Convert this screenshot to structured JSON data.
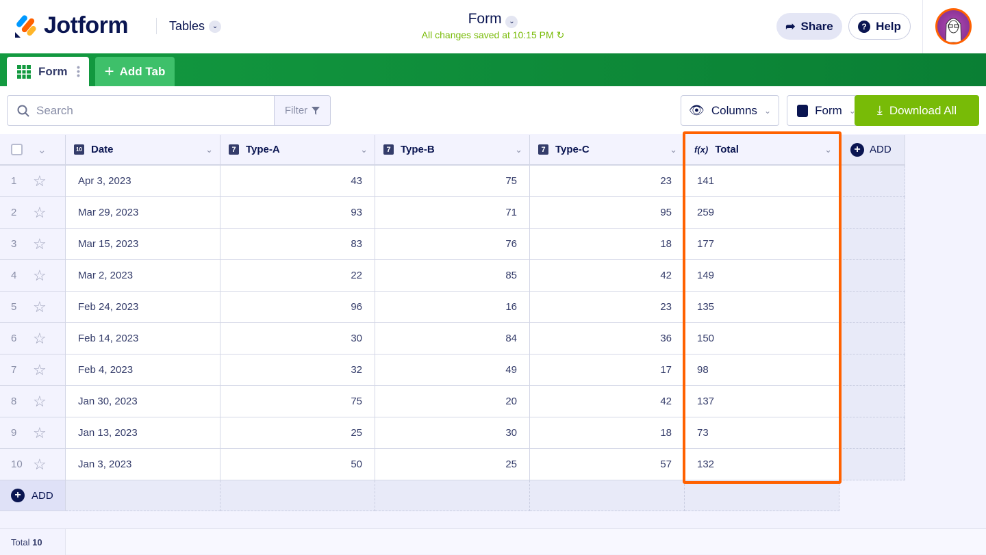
{
  "header": {
    "logo": "Jotform",
    "product": "Tables",
    "title": "Form",
    "saved_status": "All changes saved at 10:15 PM",
    "share": "Share",
    "help": "Help"
  },
  "tabs": {
    "active": "Form",
    "add": "Add Tab"
  },
  "toolbar": {
    "search_placeholder": "Search",
    "filter": "Filter",
    "columns": "Columns",
    "form": "Form",
    "download": "Download All"
  },
  "colors": {
    "brand_green": "#0f8f3a",
    "download": "#78bb07",
    "highlight": "#ff6100",
    "navy": "#0a1551"
  },
  "table": {
    "columns": [
      "Date",
      "Type-A",
      "Type-B",
      "Type-C",
      "Total"
    ],
    "add_column": "ADD",
    "rows": [
      {
        "n": "1",
        "date": "Apr 3, 2023",
        "a": "43",
        "b": "75",
        "c": "23",
        "total": "141"
      },
      {
        "n": "2",
        "date": "Mar 29, 2023",
        "a": "93",
        "b": "71",
        "c": "95",
        "total": "259"
      },
      {
        "n": "3",
        "date": "Mar 15, 2023",
        "a": "83",
        "b": "76",
        "c": "18",
        "total": "177"
      },
      {
        "n": "4",
        "date": "Mar 2, 2023",
        "a": "22",
        "b": "85",
        "c": "42",
        "total": "149"
      },
      {
        "n": "5",
        "date": "Feb 24, 2023",
        "a": "96",
        "b": "16",
        "c": "23",
        "total": "135"
      },
      {
        "n": "6",
        "date": "Feb 14, 2023",
        "a": "30",
        "b": "84",
        "c": "36",
        "total": "150"
      },
      {
        "n": "7",
        "date": "Feb 4, 2023",
        "a": "32",
        "b": "49",
        "c": "17",
        "total": "98"
      },
      {
        "n": "8",
        "date": "Jan 30, 2023",
        "a": "75",
        "b": "20",
        "c": "42",
        "total": "137"
      },
      {
        "n": "9",
        "date": "Jan 13, 2023",
        "a": "25",
        "b": "30",
        "c": "18",
        "total": "73"
      },
      {
        "n": "10",
        "date": "Jan 3, 2023",
        "a": "50",
        "b": "25",
        "c": "57",
        "total": "132"
      }
    ],
    "add_row": "ADD"
  },
  "footer": {
    "label": "Total",
    "count": "10"
  }
}
